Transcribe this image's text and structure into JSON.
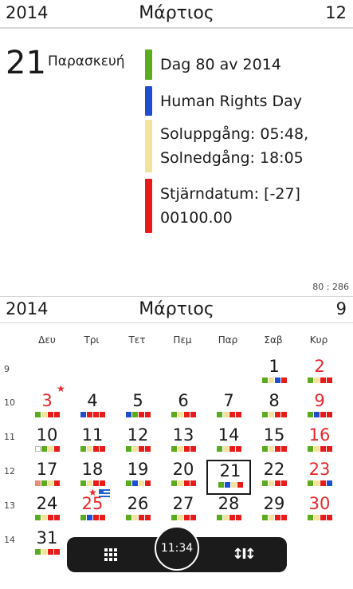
{
  "top_header": {
    "year": "2014",
    "month": "Μάρτιος",
    "count": "12"
  },
  "selected_day": {
    "number": "21",
    "name": "Παρασκευή"
  },
  "events": [
    {
      "text": "Dag 80 av 2014",
      "color": "#5aab1e"
    },
    {
      "text": "Human Rights Day",
      "color": "#1f4ecf"
    },
    {
      "text": "Soluppgång: 05:48,\nSolnedgång: 18:05",
      "color": "#f3e39c"
    },
    {
      "text": "Stjärndatum: [-27]\n00100.00",
      "color": "#e81b1b"
    }
  ],
  "counter": "80 : 286",
  "bottom_header": {
    "year": "2014",
    "month": "Μάρτιος",
    "count": "9"
  },
  "weekdays": [
    "Δευ",
    "Τρι",
    "Τετ",
    "Πεμ",
    "Παρ",
    "Σαβ",
    "Κυρ"
  ],
  "weeks": [
    "9",
    "10",
    "11",
    "12",
    "13",
    "14"
  ],
  "appbar": {
    "time": "11:34"
  },
  "icons": {
    "grid": "grid-icon",
    "settings": "settings-icon",
    "star": "star-icon",
    "flag": "greek-flag-icon"
  }
}
